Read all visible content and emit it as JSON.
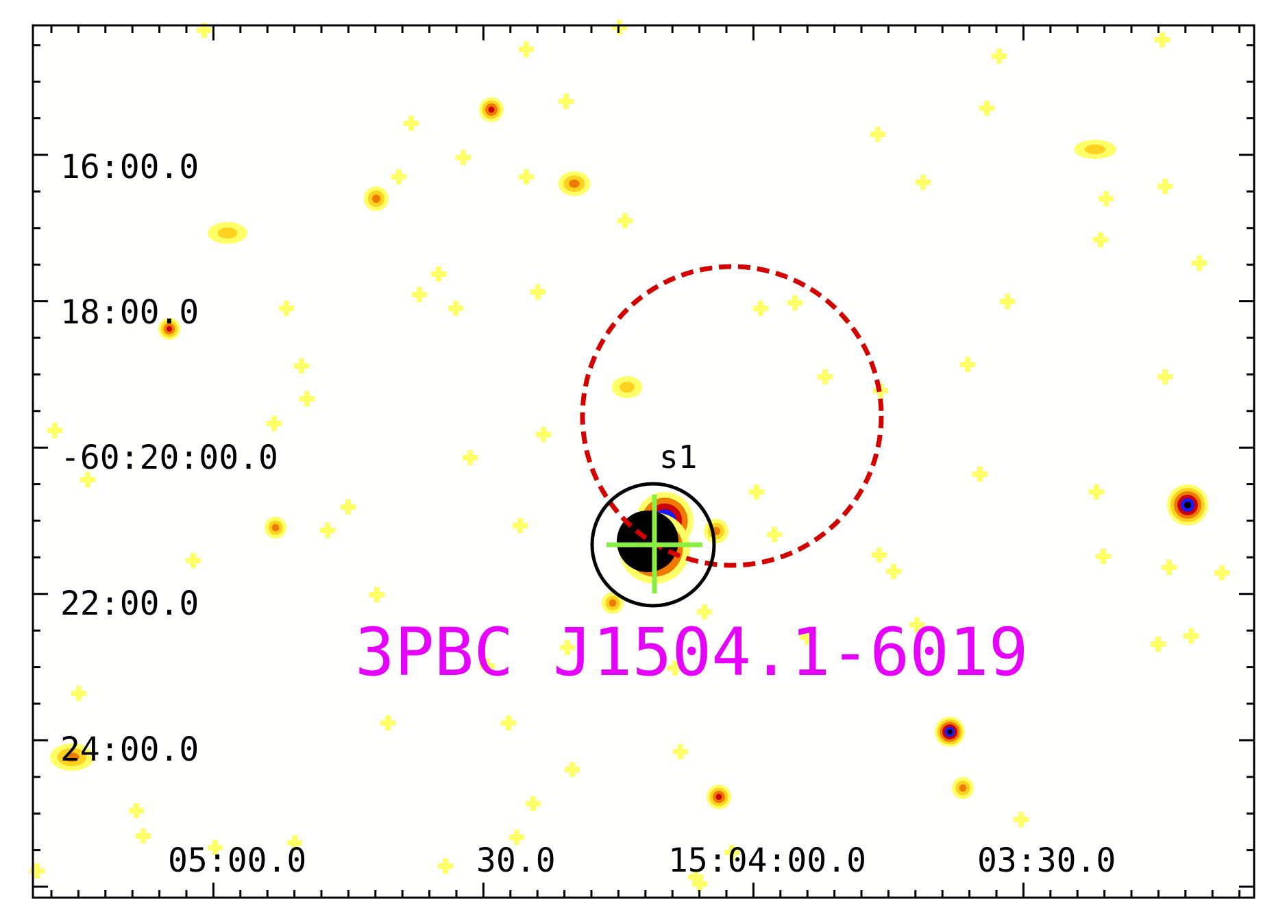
{
  "image": {
    "background": "#fffffd",
    "colormap": [
      "#ffff66",
      "#ffd21f",
      "#f07a00",
      "#cc0000",
      "#1a1aff",
      "#000000"
    ]
  },
  "axes": {
    "y_labels": [
      "16:00.0",
      "18:00.0",
      "-60:20:00.0",
      "22:00.0",
      "24:00.0"
    ],
    "x_labels": [
      "05:00.0",
      "30.0",
      "15:04:00.0",
      "03:30.0"
    ],
    "tick_color": "#000000"
  },
  "source": {
    "name": "3PBC J1504.1-6019",
    "color": "#e600ff",
    "error_circle_color": "#d40000",
    "error_circle_style": "dashed"
  },
  "candidates": [
    {
      "label": "s1",
      "circle_color": "#000000",
      "marker_color": "#88ee44"
    }
  ]
}
